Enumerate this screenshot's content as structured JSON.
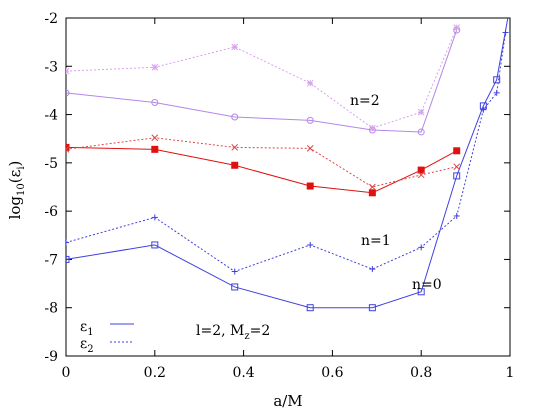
{
  "chart_data": {
    "type": "line",
    "xlabel": "a/M",
    "ylabel": "log10(εi)",
    "ylabel_parts": {
      "base": "log",
      "base_sub": "10",
      "open": "(ε",
      "var_sub": "i",
      "close": ")"
    },
    "xlim": [
      0,
      1
    ],
    "ylim": [
      -9,
      -2
    ],
    "x_ticks": [
      0,
      0.2,
      0.4,
      0.6,
      0.8,
      1
    ],
    "x_tick_labels": [
      "0",
      "0.2",
      "0.4",
      "0.6",
      "0.8",
      "1"
    ],
    "y_ticks": [
      -9,
      -8,
      -7,
      -6,
      -5,
      -4,
      -3,
      -2
    ],
    "y_tick_labels": [
      "-9",
      "-8",
      "-7",
      "-6",
      "-5",
      "-4",
      "-3",
      "-2"
    ],
    "grid": false,
    "legend": {
      "placement": "bottom-left",
      "entries": [
        {
          "symbol": "ε",
          "sub": "1",
          "style": "solid"
        },
        {
          "symbol": "ε",
          "sub": "2",
          "style": "dotted"
        }
      ]
    },
    "annotations": [
      {
        "text": "n=2",
        "x": 0.66,
        "y": -3.9
      },
      {
        "text": "n=1",
        "x": 0.7,
        "y": -6.2
      },
      {
        "text": "n=0",
        "x": 0.82,
        "y": -7.75
      }
    ],
    "parameter_label": {
      "l_text": "l=2, M",
      "sub": "z",
      "tail": "=2"
    },
    "series": [
      {
        "group": "n=2",
        "error": "ε1",
        "style": "solid",
        "marker": "circle",
        "color": "#b388e8",
        "x": [
          0,
          0.2,
          0.38,
          0.55,
          0.69,
          0.8,
          0.88
        ],
        "y": [
          -3.55,
          -3.75,
          -4.05,
          -4.12,
          -4.32,
          -4.36,
          -2.25
        ]
      },
      {
        "group": "n=2",
        "error": "ε2",
        "style": "dotted",
        "marker": "star",
        "color": "#d8a0ee",
        "x": [
          0,
          0.2,
          0.38,
          0.55,
          0.69,
          0.8,
          0.88
        ],
        "y": [
          -3.1,
          -3.02,
          -2.6,
          -3.35,
          -4.28,
          -3.95,
          -2.2
        ]
      },
      {
        "group": "n=1",
        "error": "ε1",
        "style": "solid",
        "marker": "filled-square",
        "color": "#e01010",
        "x": [
          0,
          0.2,
          0.38,
          0.55,
          0.69,
          0.8,
          0.88
        ],
        "y": [
          -4.68,
          -4.72,
          -5.05,
          -5.48,
          -5.62,
          -5.15,
          -4.75
        ]
      },
      {
        "group": "n=1",
        "error": "ε2",
        "style": "dotted",
        "marker": "x",
        "color": "#e04848",
        "x": [
          0,
          0.2,
          0.38,
          0.55,
          0.69,
          0.8,
          0.88
        ],
        "y": [
          -4.72,
          -4.48,
          -4.68,
          -4.7,
          -5.5,
          -5.25,
          -5.08
        ]
      },
      {
        "group": "n=0",
        "error": "ε1",
        "style": "solid",
        "marker": "open-square",
        "color": "#4040e0",
        "x": [
          0,
          0.2,
          0.38,
          0.55,
          0.69,
          0.8,
          0.88,
          0.94,
          0.97,
          1.0
        ],
        "y": [
          -7.0,
          -6.7,
          -7.57,
          -8.0,
          -8.0,
          -7.67,
          -5.27,
          -3.82,
          -3.28,
          -1.75
        ]
      },
      {
        "group": "n=0",
        "error": "ε2",
        "style": "dotted",
        "marker": "plus",
        "color": "#4040e0",
        "x": [
          0,
          0.2,
          0.38,
          0.55,
          0.69,
          0.8,
          0.88,
          0.94,
          0.97,
          0.99
        ],
        "y": [
          -6.65,
          -6.13,
          -7.25,
          -6.7,
          -7.2,
          -6.75,
          -6.1,
          -3.9,
          -3.55,
          -2.3
        ]
      }
    ]
  }
}
